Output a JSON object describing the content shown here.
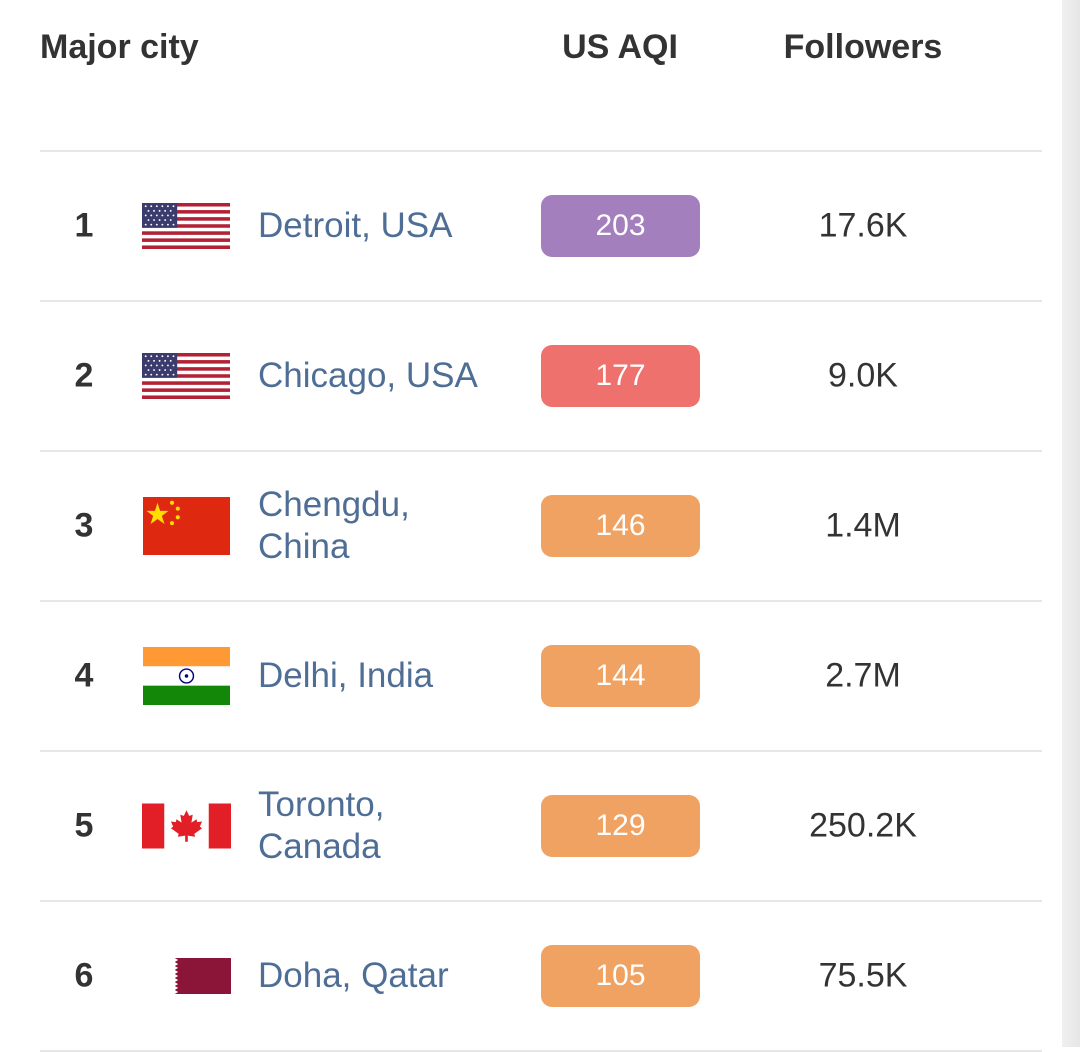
{
  "header": {
    "city_label": "Major city",
    "aqi_label": "US AQI",
    "followers_label": "Followers"
  },
  "rows": [
    {
      "rank": "1",
      "flag": "us-flag-icon",
      "city": "Detroit, USA",
      "aqi": "203",
      "aqi_color": "#a47fbe",
      "followers": "17.6K"
    },
    {
      "rank": "2",
      "flag": "us-flag-icon",
      "city": "Chicago, USA",
      "aqi": "177",
      "aqi_color": "#ee716e",
      "followers": "9.0K"
    },
    {
      "rank": "3",
      "flag": "china-flag-icon",
      "city": "Chengdu, China",
      "aqi": "146",
      "aqi_color": "#f0a262",
      "followers": "1.4M"
    },
    {
      "rank": "4",
      "flag": "india-flag-icon",
      "city": "Delhi, India",
      "aqi": "144",
      "aqi_color": "#f0a262",
      "followers": "2.7M"
    },
    {
      "rank": "5",
      "flag": "canada-flag-icon",
      "city": "Toronto, Canada",
      "aqi": "129",
      "aqi_color": "#f0a262",
      "followers": "250.2K"
    },
    {
      "rank": "6",
      "flag": "qatar-flag-icon",
      "city": "Doha, Qatar",
      "aqi": "105",
      "aqi_color": "#f0a262",
      "followers": "75.5K"
    }
  ]
}
